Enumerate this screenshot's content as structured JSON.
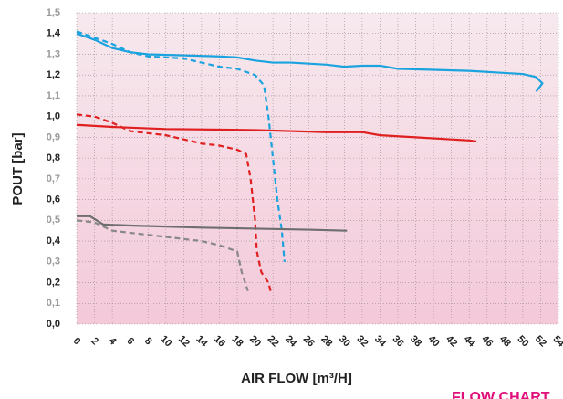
{
  "chart_data": {
    "type": "line",
    "ylabel": "POUT [bar]",
    "xlabel": "AIR FLOW [m³/H]",
    "footer": "FLOW CHART",
    "xlim": [
      0,
      54
    ],
    "ylim": [
      0,
      1.5
    ],
    "grid": true,
    "xticks": [
      0,
      2,
      4,
      6,
      8,
      10,
      12,
      14,
      16,
      18,
      20,
      22,
      24,
      26,
      28,
      30,
      32,
      34,
      36,
      38,
      40,
      42,
      44,
      46,
      48,
      50,
      52,
      54
    ],
    "yticks": [
      {
        "value": 0,
        "label": "0,0"
      },
      {
        "value": 0.1,
        "label": "0,1"
      },
      {
        "value": 0.2,
        "label": "0,2"
      },
      {
        "value": 0.3,
        "label": "0,3"
      },
      {
        "value": 0.4,
        "label": "0,4"
      },
      {
        "value": 0.5,
        "label": "0,5"
      },
      {
        "value": 0.6,
        "label": "0,6"
      },
      {
        "value": 0.7,
        "label": "0,7"
      },
      {
        "value": 0.8,
        "label": "0,8"
      },
      {
        "value": 0.9,
        "label": "0,9"
      },
      {
        "value": 1.0,
        "label": "1,0"
      },
      {
        "value": 1.1,
        "label": "1,1"
      },
      {
        "value": 1.2,
        "label": "1,2"
      },
      {
        "value": 1.3,
        "label": "1,3"
      },
      {
        "value": 1.4,
        "label": "1,4"
      },
      {
        "value": 1.5,
        "label": "1,5"
      }
    ],
    "series": [
      {
        "color": "#1aa3de",
        "dashed": false,
        "x": [
          0,
          2,
          4,
          6,
          8,
          12,
          16,
          18,
          20,
          22,
          24,
          28,
          30,
          32,
          34,
          36,
          40,
          44,
          48,
          50,
          51.5,
          52.2,
          51.5
        ],
        "values": [
          1.4,
          1.37,
          1.33,
          1.31,
          1.3,
          1.295,
          1.29,
          1.285,
          1.27,
          1.26,
          1.26,
          1.25,
          1.24,
          1.245,
          1.245,
          1.23,
          1.225,
          1.22,
          1.21,
          1.205,
          1.19,
          1.16,
          1.12
        ]
      },
      {
        "color": "#1aa3de",
        "dashed": true,
        "x": [
          0,
          2,
          4,
          6,
          8,
          12,
          14,
          16,
          18,
          20,
          21,
          21.5,
          22,
          22.5,
          23,
          23.3
        ],
        "values": [
          1.41,
          1.38,
          1.35,
          1.31,
          1.29,
          1.28,
          1.26,
          1.24,
          1.23,
          1.2,
          1.15,
          1.0,
          0.8,
          0.6,
          0.45,
          0.3
        ]
      },
      {
        "color": "#e02020",
        "dashed": false,
        "x": [
          0,
          4,
          10,
          20,
          24,
          28,
          32,
          34,
          38,
          42,
          44,
          44.8
        ],
        "values": [
          0.96,
          0.95,
          0.94,
          0.935,
          0.93,
          0.925,
          0.925,
          0.91,
          0.9,
          0.89,
          0.885,
          0.88
        ]
      },
      {
        "color": "#e02020",
        "dashed": true,
        "x": [
          0,
          2,
          4,
          6,
          10,
          14,
          16,
          18,
          19,
          19.5,
          20,
          20.2,
          20.7,
          21.5,
          21.8
        ],
        "values": [
          1.01,
          1.0,
          0.97,
          0.93,
          0.91,
          0.87,
          0.86,
          0.84,
          0.82,
          0.7,
          0.5,
          0.35,
          0.25,
          0.2,
          0.15
        ]
      },
      {
        "color": "#6e6e6e",
        "dashed": false,
        "x": [
          0,
          1.5,
          3,
          6,
          10,
          14,
          20,
          26,
          30.3
        ],
        "values": [
          0.52,
          0.52,
          0.48,
          0.475,
          0.47,
          0.465,
          0.46,
          0.455,
          0.45
        ]
      },
      {
        "color": "#888888",
        "dashed": true,
        "x": [
          0,
          2,
          4,
          8,
          10,
          12,
          14,
          16,
          18,
          18.5,
          19.2
        ],
        "values": [
          0.5,
          0.49,
          0.45,
          0.43,
          0.42,
          0.41,
          0.4,
          0.38,
          0.35,
          0.25,
          0.16
        ]
      }
    ]
  }
}
